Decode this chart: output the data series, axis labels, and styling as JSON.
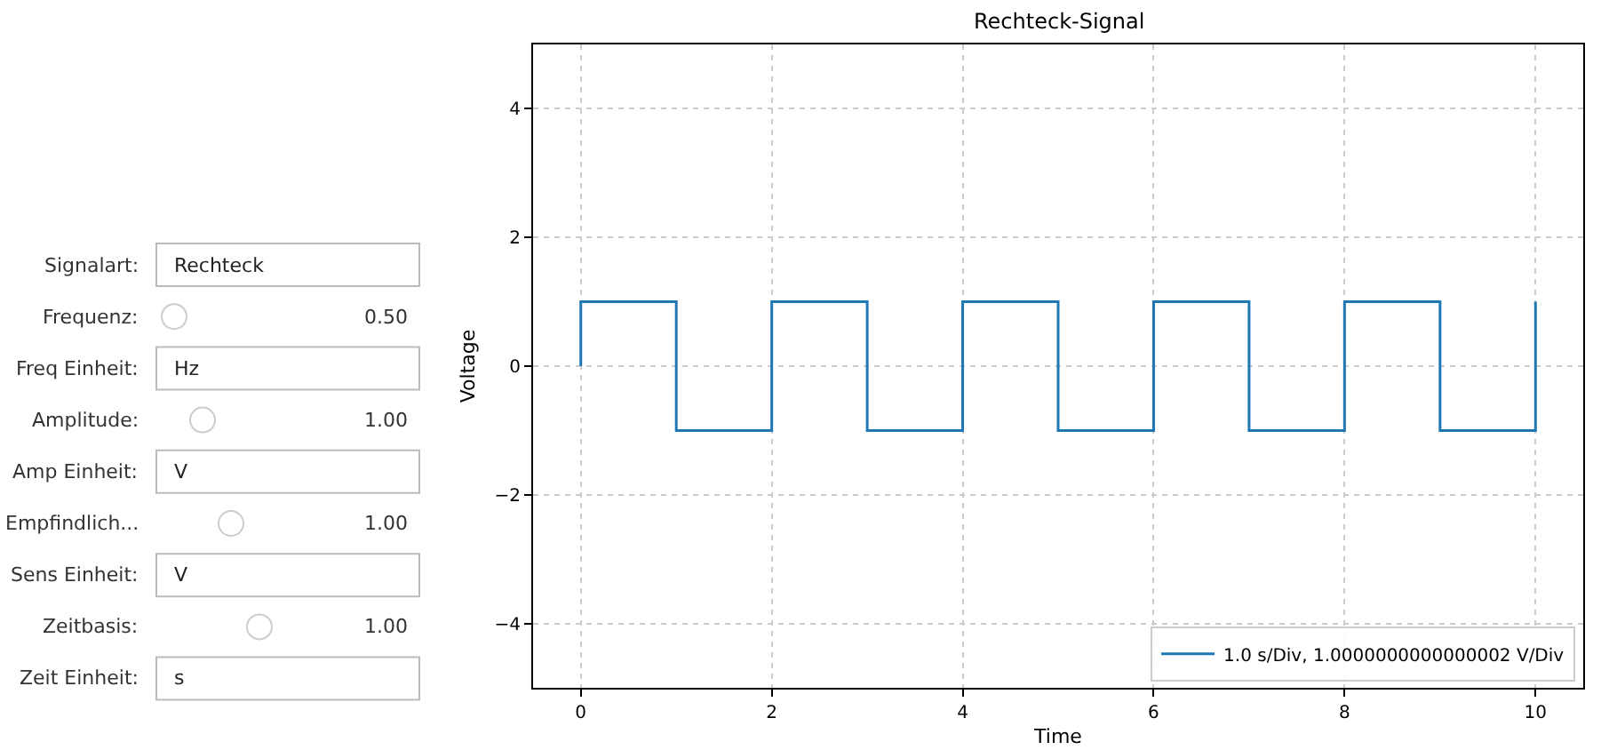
{
  "chart_data": [
    {
      "type": "other",
      "annotations": [
        "Signalart:",
        "Rechteck",
        "Frequenz:",
        "0.50",
        "Freq Einheit:",
        "Hz",
        "Amplitude:",
        "1.00",
        "Amp Einheit:",
        "V",
        "Empfindlich...",
        "1.00",
        "Sens Einheit:",
        "V",
        "Zeitbasis:",
        "1.00",
        "Zeit Einheit:",
        "s"
      ]
    },
    {
      "type": "line",
      "title": "Rechteck-Signal",
      "xlabel": "Time",
      "ylabel": "Voltage",
      "xlim": [
        -0.5,
        10.5
      ],
      "ylim": [
        -5,
        5
      ],
      "xticks": [
        0,
        2,
        4,
        6,
        8,
        10
      ],
      "yticks": [
        -4,
        -2,
        0,
        2,
        4
      ],
      "grid": true,
      "legend": "bottom right",
      "series": [
        {
          "name": "1.0 s/Div, 1.0000000000000002 V/Div",
          "color": "#1f77b4",
          "x": [
            0,
            0,
            1,
            1,
            2,
            2,
            3,
            3,
            4,
            4,
            5,
            5,
            6,
            6,
            7,
            7,
            8,
            8,
            9,
            9,
            10,
            10
          ],
          "values": [
            0,
            1,
            1,
            -1,
            -1,
            1,
            1,
            -1,
            -1,
            1,
            1,
            -1,
            -1,
            1,
            1,
            -1,
            -1,
            1,
            1,
            -1,
            -1,
            1
          ]
        }
      ]
    }
  ]
}
